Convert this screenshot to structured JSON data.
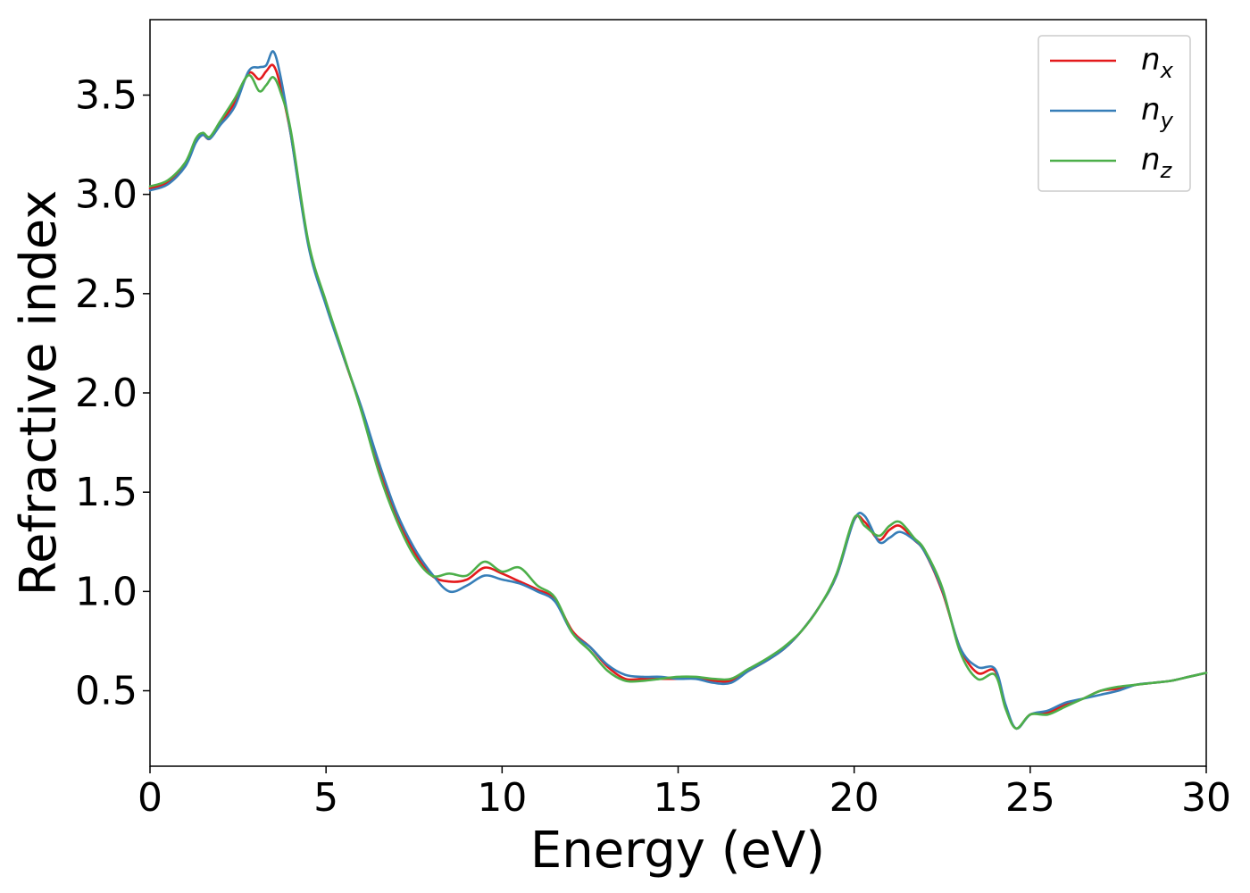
{
  "chart_data": {
    "type": "line",
    "title": "",
    "xlabel": "Energy (eV)",
    "ylabel": "Refractive index",
    "xlim": [
      0,
      30
    ],
    "ylim": [
      0.12,
      3.88
    ],
    "grid": false,
    "legend_position": "top-right",
    "x_ticks": [
      0,
      5,
      10,
      15,
      20,
      25,
      30
    ],
    "y_ticks": [
      0.5,
      1.0,
      1.5,
      2.0,
      2.5,
      3.0,
      3.5
    ],
    "x_tick_labels": [
      "0",
      "5",
      "10",
      "15",
      "20",
      "25",
      "30"
    ],
    "y_tick_labels": [
      "0.5",
      "1.0",
      "1.5",
      "2.0",
      "2.5",
      "3.0",
      "3.5"
    ],
    "series": [
      {
        "name": "n",
        "subscript": "x",
        "color": "#e41a1c",
        "x": [
          0,
          0.5,
          1.0,
          1.3,
          1.5,
          1.7,
          2.0,
          2.4,
          2.8,
          3.1,
          3.3,
          3.5,
          3.7,
          4.0,
          4.5,
          5.0,
          5.5,
          6.0,
          6.5,
          7.0,
          7.5,
          8.0,
          8.5,
          9.0,
          9.5,
          10.0,
          10.5,
          11.0,
          11.5,
          12.0,
          12.5,
          13.0,
          13.5,
          14.0,
          14.5,
          15.0,
          15.5,
          16.0,
          16.5,
          17.0,
          17.5,
          18.0,
          18.5,
          19.0,
          19.5,
          20.0,
          20.3,
          20.7,
          21.0,
          21.3,
          21.7,
          22.0,
          22.5,
          23.0,
          23.5,
          24.0,
          24.3,
          24.6,
          25.0,
          25.5,
          26.0,
          26.5,
          27.0,
          27.5,
          28.0,
          28.5,
          29.0,
          29.5,
          30.0
        ],
        "y": [
          3.03,
          3.06,
          3.15,
          3.27,
          3.3,
          3.28,
          3.36,
          3.46,
          3.61,
          3.58,
          3.62,
          3.65,
          3.55,
          3.3,
          2.75,
          2.45,
          2.18,
          1.92,
          1.62,
          1.38,
          1.2,
          1.08,
          1.05,
          1.06,
          1.12,
          1.09,
          1.05,
          1.01,
          0.96,
          0.8,
          0.72,
          0.62,
          0.56,
          0.56,
          0.56,
          0.56,
          0.565,
          0.55,
          0.55,
          0.6,
          0.65,
          0.71,
          0.8,
          0.92,
          1.08,
          1.36,
          1.35,
          1.26,
          1.31,
          1.33,
          1.26,
          1.2,
          1.0,
          0.72,
          0.59,
          0.6,
          0.42,
          0.31,
          0.38,
          0.39,
          0.43,
          0.46,
          0.5,
          0.51,
          0.53,
          0.54,
          0.55,
          0.57,
          0.59
        ]
      },
      {
        "name": "n",
        "subscript": "y",
        "color": "#377eb8",
        "x": [
          0,
          0.5,
          1.0,
          1.3,
          1.5,
          1.7,
          2.0,
          2.4,
          2.8,
          3.1,
          3.3,
          3.5,
          3.7,
          4.0,
          4.5,
          5.0,
          5.5,
          6.0,
          6.5,
          7.0,
          7.5,
          8.0,
          8.5,
          9.0,
          9.5,
          10.0,
          10.5,
          11.0,
          11.5,
          12.0,
          12.5,
          13.0,
          13.5,
          14.0,
          14.5,
          15.0,
          15.5,
          16.0,
          16.5,
          17.0,
          17.5,
          18.0,
          18.5,
          19.0,
          19.5,
          20.0,
          20.3,
          20.7,
          21.0,
          21.3,
          21.7,
          22.0,
          22.5,
          23.0,
          23.5,
          24.0,
          24.3,
          24.6,
          25.0,
          25.5,
          26.0,
          26.5,
          27.0,
          27.5,
          28.0,
          28.5,
          29.0,
          29.5,
          30.0
        ],
        "y": [
          3.02,
          3.05,
          3.14,
          3.26,
          3.3,
          3.28,
          3.35,
          3.44,
          3.62,
          3.64,
          3.65,
          3.72,
          3.6,
          3.3,
          2.74,
          2.44,
          2.18,
          1.93,
          1.65,
          1.4,
          1.22,
          1.09,
          1.0,
          1.03,
          1.08,
          1.06,
          1.04,
          1.0,
          0.95,
          0.79,
          0.72,
          0.63,
          0.58,
          0.57,
          0.57,
          0.56,
          0.56,
          0.54,
          0.54,
          0.6,
          0.65,
          0.71,
          0.8,
          0.92,
          1.08,
          1.36,
          1.38,
          1.25,
          1.27,
          1.3,
          1.26,
          1.2,
          1.01,
          0.72,
          0.62,
          0.61,
          0.43,
          0.31,
          0.38,
          0.4,
          0.44,
          0.46,
          0.48,
          0.5,
          0.53,
          0.54,
          0.55,
          0.57,
          0.59
        ]
      },
      {
        "name": "n",
        "subscript": "z",
        "color": "#4daf4a",
        "x": [
          0,
          0.5,
          1.0,
          1.3,
          1.5,
          1.7,
          2.0,
          2.4,
          2.8,
          3.1,
          3.3,
          3.5,
          3.7,
          4.0,
          4.5,
          5.0,
          5.5,
          6.0,
          6.5,
          7.0,
          7.5,
          8.0,
          8.5,
          9.0,
          9.5,
          10.0,
          10.5,
          11.0,
          11.5,
          12.0,
          12.5,
          13.0,
          13.5,
          14.0,
          14.5,
          15.0,
          15.5,
          16.0,
          16.5,
          17.0,
          17.5,
          18.0,
          18.5,
          19.0,
          19.5,
          20.0,
          20.3,
          20.7,
          21.0,
          21.3,
          21.7,
          22.0,
          22.5,
          23.0,
          23.5,
          24.0,
          24.3,
          24.6,
          25.0,
          25.5,
          26.0,
          26.5,
          27.0,
          27.5,
          28.0,
          28.5,
          29.0,
          29.5,
          30.0
        ],
        "y": [
          3.04,
          3.07,
          3.16,
          3.28,
          3.31,
          3.29,
          3.37,
          3.48,
          3.6,
          3.52,
          3.55,
          3.59,
          3.52,
          3.32,
          2.76,
          2.46,
          2.19,
          1.91,
          1.6,
          1.36,
          1.18,
          1.08,
          1.09,
          1.08,
          1.15,
          1.1,
          1.12,
          1.03,
          0.97,
          0.79,
          0.7,
          0.6,
          0.55,
          0.55,
          0.56,
          0.57,
          0.57,
          0.56,
          0.56,
          0.61,
          0.66,
          0.72,
          0.8,
          0.92,
          1.09,
          1.37,
          1.33,
          1.28,
          1.33,
          1.35,
          1.27,
          1.21,
          1.02,
          0.7,
          0.56,
          0.58,
          0.41,
          0.31,
          0.38,
          0.38,
          0.42,
          0.46,
          0.5,
          0.52,
          0.53,
          0.54,
          0.55,
          0.57,
          0.59
        ]
      }
    ]
  }
}
